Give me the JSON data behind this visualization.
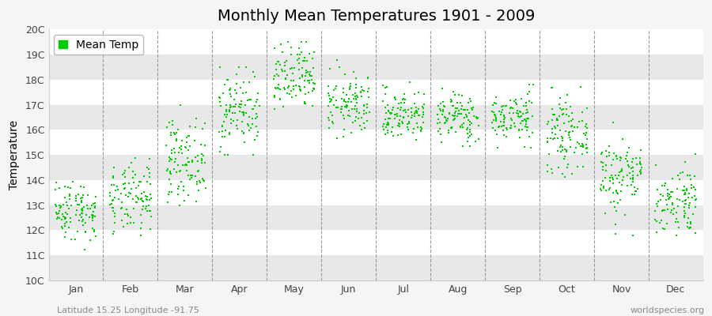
{
  "title": "Monthly Mean Temperatures 1901 - 2009",
  "ylabel": "Temperature",
  "xlabel_labels": [
    "Jan",
    "Feb",
    "Mar",
    "Apr",
    "May",
    "Jun",
    "Jul",
    "Aug",
    "Sep",
    "Oct",
    "Nov",
    "Dec"
  ],
  "ytick_labels": [
    "10C",
    "11C",
    "12C",
    "13C",
    "14C",
    "15C",
    "16C",
    "17C",
    "18C",
    "19C",
    "20C"
  ],
  "ylim": [
    10,
    20
  ],
  "legend_label": "Mean Temp",
  "dot_color": "#00cc00",
  "bg_color": "#f5f5f5",
  "plot_bg_color": "#ffffff",
  "stripe_color": "#e8e8e8",
  "dashed_color": "#999999",
  "footer_left": "Latitude 15.25 Longitude -91.75",
  "footer_right": "worldspecies.org",
  "title_fontsize": 14,
  "axis_fontsize": 10,
  "tick_fontsize": 9,
  "footer_fontsize": 8,
  "dot_size": 3,
  "num_years": 109,
  "monthly_means": [
    12.8,
    13.2,
    14.8,
    16.8,
    18.0,
    17.0,
    16.6,
    16.5,
    16.5,
    15.8,
    14.2,
    13.2
  ],
  "monthly_stds": [
    0.6,
    0.7,
    0.8,
    0.8,
    0.7,
    0.6,
    0.5,
    0.5,
    0.5,
    0.7,
    0.8,
    0.7
  ],
  "monthly_mins": [
    10.8,
    11.2,
    13.0,
    15.0,
    16.2,
    15.3,
    15.3,
    15.3,
    15.3,
    14.0,
    11.8,
    11.8
  ],
  "monthly_maxs": [
    14.5,
    15.0,
    17.0,
    18.5,
    19.5,
    19.3,
    18.3,
    18.3,
    17.8,
    17.8,
    16.3,
    15.8
  ],
  "random_seed": 42
}
